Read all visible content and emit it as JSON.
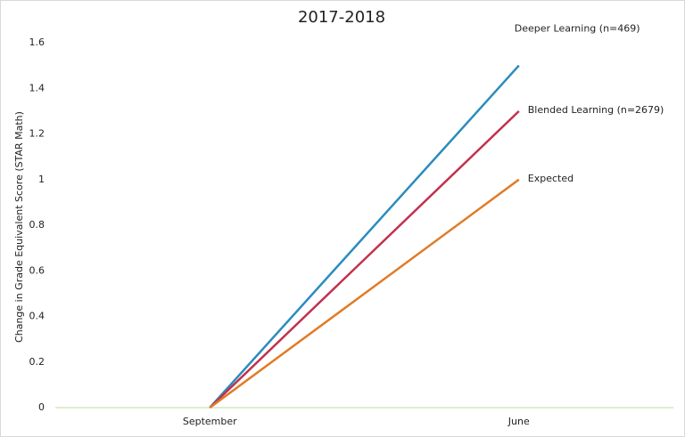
{
  "chart_data": {
    "type": "line",
    "title": "2017-2018",
    "y_label": "Change in Grade Equivalent Score (STAR Math)",
    "categories": [
      "September",
      "June"
    ],
    "series": [
      {
        "name": "Deeper Learning (n=469)",
        "color": "#2b8cbe",
        "values": [
          0,
          1.5
        ]
      },
      {
        "name": "Blended Learning (n=2679)",
        "color": "#c2314e",
        "values": [
          0,
          1.3
        ]
      },
      {
        "name": "Expected",
        "color": "#e07b26",
        "values": [
          0,
          1.0
        ]
      }
    ],
    "ylim": [
      0,
      1.6
    ],
    "yticks": [
      0,
      0.2,
      0.4,
      0.6,
      0.8,
      1,
      1.2,
      1.4,
      1.6
    ],
    "grid": false
  }
}
